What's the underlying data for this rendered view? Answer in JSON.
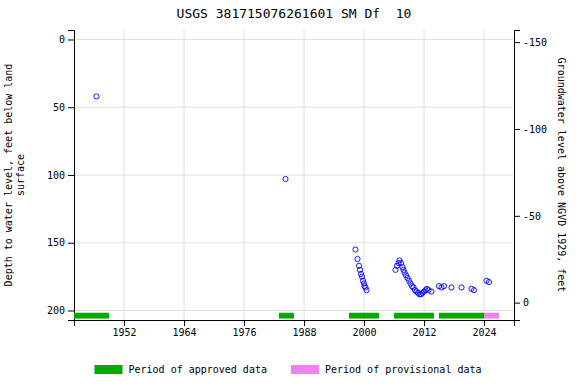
{
  "chart_data": {
    "type": "scatter",
    "title": "USGS 381715076261601 SM Df  10",
    "ylabel": "Depth to water level, feet below land\nsurface",
    "y2label": "Groundwater level above NGVD 1929, feet",
    "xlim": [
      1942,
      2030
    ],
    "ylim": [
      207,
      -7
    ],
    "y2lim": [
      10,
      -157
    ],
    "xticks": [
      1952,
      1964,
      1976,
      1988,
      2000,
      2012,
      2024
    ],
    "yticks": [
      0,
      50,
      100,
      150,
      200
    ],
    "y2ticks": [
      0,
      -50,
      -100,
      -150
    ],
    "grid": true,
    "legend": "bottom",
    "marker": "open-circle",
    "color": "#0000ff",
    "x": [
      1946.5,
      1984.3,
      1998.3,
      1998.7,
      1999.0,
      1999.2,
      1999.4,
      1999.6,
      1999.8,
      2000.0,
      2000.1,
      2000.3,
      2000.5,
      2006.3,
      2006.6,
      2006.9,
      2007.1,
      2007.4,
      2007.7,
      2007.9,
      2008.1,
      2008.4,
      2008.7,
      2009.0,
      2009.3,
      2009.6,
      2009.9,
      2010.2,
      2010.5,
      2010.8,
      2011.1,
      2011.4,
      2011.7,
      2012.0,
      2012.3,
      2012.6,
      2012.9,
      2013.5,
      2015.0,
      2015.5,
      2016.0,
      2017.5,
      2019.5,
      2021.5,
      2022.0,
      2024.5,
      2025.0
    ],
    "values": [
      42,
      103,
      155,
      162,
      167,
      170,
      173,
      175,
      178,
      180,
      182,
      183,
      185,
      170,
      167,
      165,
      163,
      165,
      168,
      170,
      172,
      174,
      176,
      178,
      180,
      182,
      183,
      185,
      186,
      187,
      188,
      188,
      187,
      186,
      185,
      184,
      185,
      186,
      182,
      183,
      182,
      183,
      183,
      184,
      185,
      178,
      179
    ],
    "periods": [
      {
        "name": "Period of approved data",
        "color": "#00aa00",
        "ranges": [
          [
            1942,
            1949
          ],
          [
            1983,
            1986
          ],
          [
            1997,
            2003
          ],
          [
            2006,
            2014
          ],
          [
            2015,
            2024
          ]
        ]
      },
      {
        "name": "Period of provisional data",
        "color": "#ee82ee",
        "ranges": [
          [
            2024,
            2027
          ]
        ]
      }
    ]
  }
}
